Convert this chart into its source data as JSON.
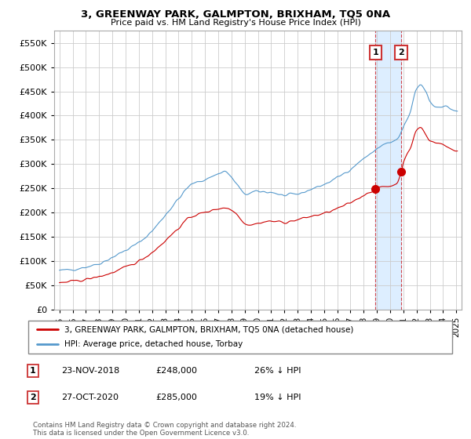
{
  "title": "3, GREENWAY PARK, GALMPTON, BRIXHAM, TQ5 0NA",
  "subtitle": "Price paid vs. HM Land Registry's House Price Index (HPI)",
  "red_label": "3, GREENWAY PARK, GALMPTON, BRIXHAM, TQ5 0NA (detached house)",
  "blue_label": "HPI: Average price, detached house, Torbay",
  "annotation1": {
    "num": "1",
    "date": "23-NOV-2018",
    "price": "£248,000",
    "note": "26% ↓ HPI"
  },
  "annotation2": {
    "num": "2",
    "date": "27-OCT-2020",
    "price": "£285,000",
    "note": "19% ↓ HPI"
  },
  "footer": "Contains HM Land Registry data © Crown copyright and database right 2024.\nThis data is licensed under the Open Government Licence v3.0.",
  "ylim": [
    0,
    575000
  ],
  "yticks": [
    0,
    50000,
    100000,
    150000,
    200000,
    250000,
    300000,
    350000,
    400000,
    450000,
    500000,
    550000
  ],
  "red_color": "#cc0000",
  "blue_color": "#5599cc",
  "highlight_color": "#ddeeff",
  "background_color": "#ffffff",
  "grid_color": "#cccccc",
  "sale1_year": 2018.896,
  "sale1_price": 248000,
  "sale2_year": 2020.827,
  "sale2_price": 285000
}
